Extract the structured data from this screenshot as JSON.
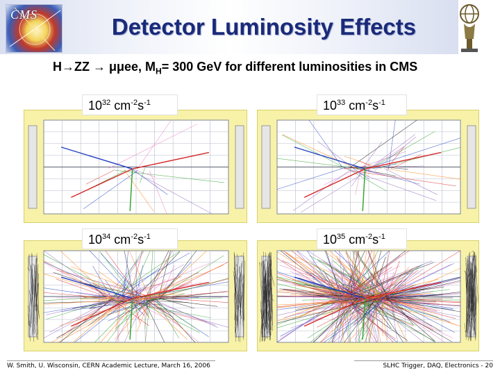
{
  "header": {
    "title": "Detector Luminosity Effects",
    "subtitle": "H→ZZ → μμee, M",
    "subtitle_sub": "H",
    "subtitle_rest": "= 300 GeV for different luminosities in CMS",
    "logo_text": "CMS"
  },
  "panels": [
    {
      "base": "10",
      "exponent": "32",
      "unit_1": "cm",
      "unit_1_exp": "-2",
      "unit_2": "s",
      "unit_2_exp": "-1"
    },
    {
      "base": "10",
      "exponent": "33",
      "unit_1": "cm",
      "unit_1_exp": "-2",
      "unit_2": "s",
      "unit_2_exp": "-1"
    },
    {
      "base": "10",
      "exponent": "34",
      "unit_1": "cm",
      "unit_1_exp": "-2",
      "unit_2": "s",
      "unit_2_exp": "-1"
    },
    {
      "base": "10",
      "exponent": "35",
      "unit_1": "cm",
      "unit_1_exp": "-2",
      "unit_2": "s",
      "unit_2_exp": "-1"
    }
  ],
  "footer": {
    "left": "W. Smith, U. Wisconsin, CERN Academic Lecture, March 16, 2006",
    "right": "SLHC Trigger, DAQ, Electronics - 20"
  },
  "colors": {
    "title": "#1a2a7a",
    "panel_bg": "#f7f2a8",
    "detector_grid": "#8a8fa0"
  }
}
